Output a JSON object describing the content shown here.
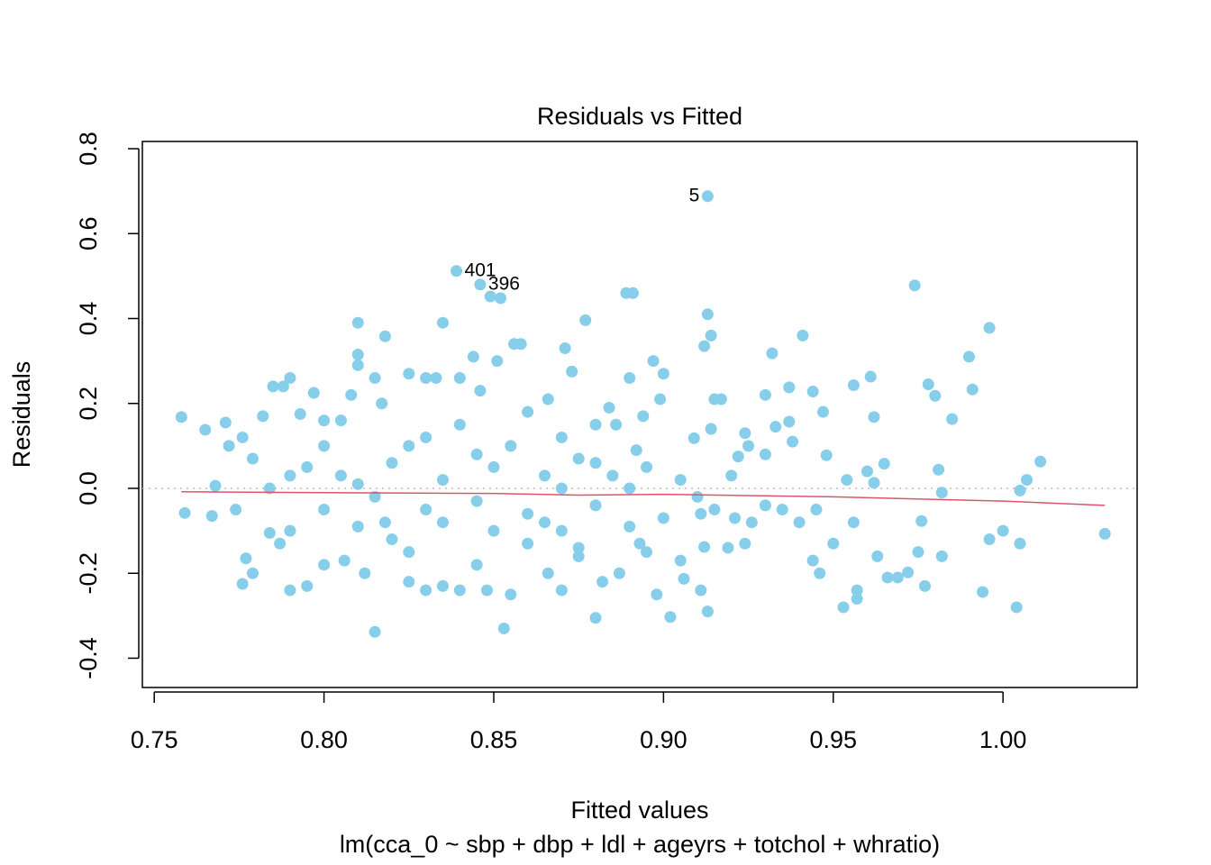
{
  "chart_data": {
    "type": "scatter",
    "title": "Residuals vs Fitted",
    "xlabel": "Fitted values",
    "subtitle": "lm(cca_0 ~ sbp + dbp + ldl + ageyrs + totchol + whratio)",
    "ylabel": "Residuals",
    "xlim": [
      0.7465,
      1.0395
    ],
    "ylim": [
      -0.469,
      0.817
    ],
    "xticks": [
      0.75,
      {
        "value": 0.8,
        "label": "0.80"
      },
      0.85,
      {
        "value": 0.9,
        "label": "0.90"
      },
      0.95,
      {
        "value": 1.0,
        "label": "1.00"
      }
    ],
    "yticks": [
      -0.4,
      -0.2,
      {
        "value": 0,
        "label": "0.0"
      },
      0.2,
      0.4,
      0.6,
      0.8
    ],
    "x": [
      0.913,
      0.839,
      0.846,
      0.849,
      0.852,
      0.889,
      0.891,
      0.974,
      0.996,
      0.99,
      0.991,
      0.985,
      0.978,
      0.98,
      1.011,
      1.007,
      1.005,
      1.03,
      1.0,
      0.996,
      1.005,
      0.994,
      1.004,
      0.981,
      0.982,
      0.982,
      0.975,
      0.976,
      0.977,
      0.972,
      0.965,
      0.961,
      0.956,
      0.962,
      0.96,
      0.962,
      0.954,
      0.956,
      0.957,
      0.957,
      0.953,
      0.963,
      0.966,
      0.969,
      0.947,
      0.944,
      0.948,
      0.945,
      0.944,
      0.946,
      0.937,
      0.941,
      0.932,
      0.933,
      0.93,
      0.937,
      0.938,
      0.935,
      0.93,
      0.922,
      0.924,
      0.915,
      0.917,
      0.913,
      0.912,
      0.914,
      0.909,
      0.914,
      0.921,
      0.926,
      0.919,
      0.924,
      0.911,
      0.913,
      0.911,
      0.912,
      0.906,
      0.902,
      0.898,
      0.9,
      0.897,
      0.899,
      0.894,
      0.892,
      0.89,
      0.886,
      0.884,
      0.88,
      0.877,
      0.873,
      0.871,
      0.866,
      0.858,
      0.856,
      0.851,
      0.846,
      0.844,
      0.84,
      0.835,
      0.833,
      0.83,
      0.825,
      0.818,
      0.817,
      0.815,
      0.81,
      0.81,
      0.81,
      0.808,
      0.805,
      0.8,
      0.797,
      0.793,
      0.79,
      0.788,
      0.785,
      0.782,
      0.779,
      0.776,
      0.772,
      0.771,
      0.765,
      0.758,
      0.759,
      0.767,
      0.768,
      0.774,
      0.776,
      0.777,
      0.779,
      0.784,
      0.787,
      0.79,
      0.795,
      0.8,
      0.806,
      0.815,
      0.812,
      0.818,
      0.825,
      0.83,
      0.835,
      0.84,
      0.845,
      0.848,
      0.853,
      0.855,
      0.86,
      0.866,
      0.87,
      0.875,
      0.88,
      0.882,
      0.887,
      0.893,
      0.784,
      0.79,
      0.795,
      0.8,
      0.805,
      0.81,
      0.815,
      0.82,
      0.825,
      0.83,
      0.835,
      0.84,
      0.845,
      0.85,
      0.855,
      0.86,
      0.865,
      0.87,
      0.875,
      0.88,
      0.885,
      0.89,
      0.895,
      0.9,
      0.905,
      0.91,
      0.92,
      0.93,
      0.94,
      0.95,
      0.82,
      0.83,
      0.845,
      0.86,
      0.87,
      0.88,
      0.89,
      0.85,
      0.835,
      0.825,
      0.8,
      0.79,
      0.81,
      0.865,
      0.875,
      0.895,
      0.905,
      0.915,
      0.925,
      0.87
    ],
    "series": [
      {
        "color": "#87ceeb",
        "values": [
          0.688,
          0.512,
          0.48,
          0.452,
          0.448,
          0.46,
          0.46,
          0.478,
          0.378,
          0.31,
          0.233,
          0.163,
          0.245,
          0.218,
          0.063,
          0.02,
          -0.005,
          -0.107,
          -0.1,
          -0.12,
          -0.13,
          -0.244,
          -0.28,
          0.044,
          -0.01,
          -0.16,
          -0.15,
          -0.077,
          -0.23,
          -0.198,
          0.058,
          0.263,
          0.243,
          0.168,
          0.04,
          0.013,
          0.02,
          -0.08,
          -0.24,
          -0.26,
          -0.28,
          -0.16,
          -0.21,
          -0.21,
          0.18,
          0.228,
          0.078,
          -0.05,
          -0.17,
          -0.2,
          0.238,
          0.36,
          0.318,
          0.145,
          0.22,
          0.157,
          0.11,
          -0.05,
          0.08,
          0.075,
          0.13,
          0.21,
          0.21,
          0.41,
          0.335,
          0.36,
          0.118,
          0.14,
          -0.07,
          -0.08,
          -0.14,
          -0.13,
          -0.06,
          -0.29,
          -0.24,
          -0.138,
          -0.213,
          -0.303,
          -0.25,
          0.27,
          0.3,
          0.21,
          0.17,
          0.09,
          0.26,
          0.15,
          0.19,
          0.15,
          0.396,
          0.275,
          0.33,
          0.21,
          0.34,
          0.34,
          0.3,
          0.23,
          0.31,
          0.26,
          0.39,
          0.26,
          0.26,
          0.27,
          0.358,
          0.2,
          0.26,
          0.39,
          0.315,
          0.29,
          0.22,
          0.16,
          0.16,
          0.225,
          0.175,
          0.26,
          0.24,
          0.24,
          0.17,
          0.07,
          0.12,
          0.1,
          0.155,
          0.138,
          0.168,
          -0.058,
          -0.065,
          0.006,
          -0.05,
          -0.225,
          -0.165,
          -0.2,
          -0.105,
          -0.13,
          -0.24,
          -0.23,
          -0.18,
          -0.17,
          -0.338,
          -0.2,
          -0.08,
          -0.22,
          -0.24,
          -0.23,
          -0.24,
          -0.18,
          -0.24,
          -0.33,
          -0.25,
          -0.13,
          -0.2,
          -0.24,
          -0.16,
          -0.305,
          -0.22,
          -0.2,
          -0.13,
          0.0,
          0.03,
          0.05,
          0.1,
          0.03,
          0.01,
          -0.02,
          0.06,
          0.1,
          -0.05,
          0.02,
          0.15,
          -0.03,
          0.05,
          0.1,
          -0.06,
          0.03,
          -0.1,
          0.07,
          -0.04,
          0.03,
          -0.09,
          0.05,
          -0.07,
          0.02,
          -0.02,
          0.03,
          -0.04,
          -0.08,
          -0.13,
          -0.12,
          0.12,
          0.08,
          0.18,
          0.12,
          0.06,
          0.0,
          -0.1,
          -0.08,
          -0.15,
          -0.05,
          -0.1,
          -0.09,
          -0.08,
          -0.14,
          -0.15,
          -0.17,
          -0.05,
          0.1,
          0.0
        ]
      }
    ],
    "smooth": {
      "color": "#df536b",
      "x": [
        0.758,
        0.8,
        0.85,
        0.875,
        0.9,
        0.95,
        1.0,
        1.03
      ],
      "values": [
        -0.008,
        -0.01,
        -0.012,
        -0.016,
        -0.014,
        -0.02,
        -0.03,
        -0.04
      ]
    },
    "hline": {
      "value": 0,
      "color": "#bebebe"
    },
    "annotations": [
      {
        "text": "5",
        "x": 0.913,
        "y": 0.688,
        "side": "left"
      },
      {
        "text": "401",
        "x": 0.839,
        "y": 0.512,
        "side": "right"
      },
      {
        "text": "396",
        "x": 0.846,
        "y": 0.48,
        "side": "right"
      }
    ]
  }
}
